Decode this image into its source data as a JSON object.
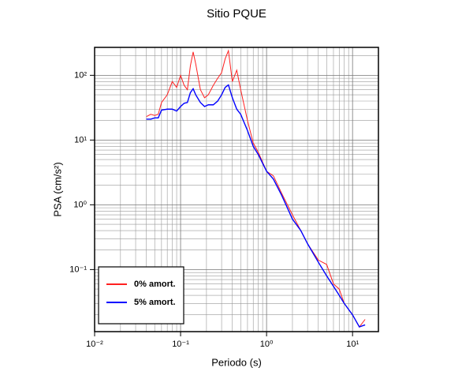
{
  "chart_data": {
    "type": "line",
    "title": "Sitio PQUE",
    "x_label": "Periodo (s)",
    "y_label": "PSA (cm/s²)",
    "x": [
      0.04,
      0.045,
      0.05,
      0.055,
      0.06,
      0.07,
      0.08,
      0.09,
      0.1,
      0.11,
      0.12,
      0.13,
      0.14,
      0.15,
      0.17,
      0.19,
      0.21,
      0.24,
      0.27,
      0.3,
      0.33,
      0.36,
      0.4,
      0.45,
      0.5,
      0.6,
      0.7,
      0.8,
      1,
      1.2,
      1.5,
      2,
      2.5,
      3,
      4,
      5,
      6,
      7,
      8,
      10,
      12,
      14
    ],
    "series": [
      {
        "name": "0% amort.",
        "color": "#ff2020",
        "values": [
          23,
          25,
          24,
          25,
          38,
          50,
          80,
          65,
          100,
          70,
          60,
          140,
          230,
          150,
          60,
          45,
          50,
          70,
          90,
          110,
          180,
          240,
          80,
          120,
          60,
          20,
          9,
          6.5,
          3.3,
          2.8,
          1.5,
          0.7,
          0.4,
          0.25,
          0.14,
          0.12,
          0.06,
          0.05,
          0.03,
          0.02,
          0.013,
          0.017
        ]
      },
      {
        "name": "5% amort.",
        "color": "#0000ff",
        "values": [
          21,
          21,
          22,
          22,
          29,
          30,
          30,
          28,
          33,
          37,
          38,
          54,
          62,
          50,
          38,
          33,
          35,
          35,
          40,
          50,
          65,
          71,
          45,
          30,
          25,
          14,
          8,
          6,
          3.3,
          2.5,
          1.4,
          0.6,
          0.4,
          0.25,
          0.13,
          0.08,
          0.055,
          0.04,
          0.03,
          0.02,
          0.013,
          0.014
        ]
      }
    ],
    "xlim": [
      0.01,
      20
    ],
    "ylim": [
      0.011,
      270
    ],
    "log_x": true,
    "log_y": true,
    "grid": true,
    "xticks": [
      {
        "value": 0.01,
        "label": "10⁻²"
      },
      {
        "value": 0.1,
        "label": "10⁻¹"
      },
      {
        "value": 1,
        "label": "10⁰"
      },
      {
        "value": 10,
        "label": "10¹"
      }
    ],
    "yticks": [
      {
        "value": 0.1,
        "label": "10⁻¹"
      },
      {
        "value": 1,
        "label": "10⁰"
      },
      {
        "value": 10,
        "label": "10¹"
      },
      {
        "value": 100,
        "label": "10²"
      }
    ],
    "xminor_ticks": [
      0.02,
      0.03,
      0.04,
      0.05,
      0.06,
      0.07,
      0.08,
      0.09,
      0.2,
      0.3,
      0.4,
      0.5,
      0.6,
      0.7,
      0.8,
      0.9,
      2,
      3,
      4,
      5,
      6,
      7,
      8,
      9
    ],
    "yminor_ticks": [
      0.02,
      0.03,
      0.04,
      0.05,
      0.06,
      0.07,
      0.08,
      0.09,
      0.2,
      0.3,
      0.4,
      0.5,
      0.6,
      0.7,
      0.8,
      0.9,
      2,
      3,
      4,
      5,
      6,
      7,
      8,
      9,
      20,
      30,
      40,
      50,
      60,
      70,
      80,
      90,
      200
    ],
    "legend": "lower left"
  }
}
